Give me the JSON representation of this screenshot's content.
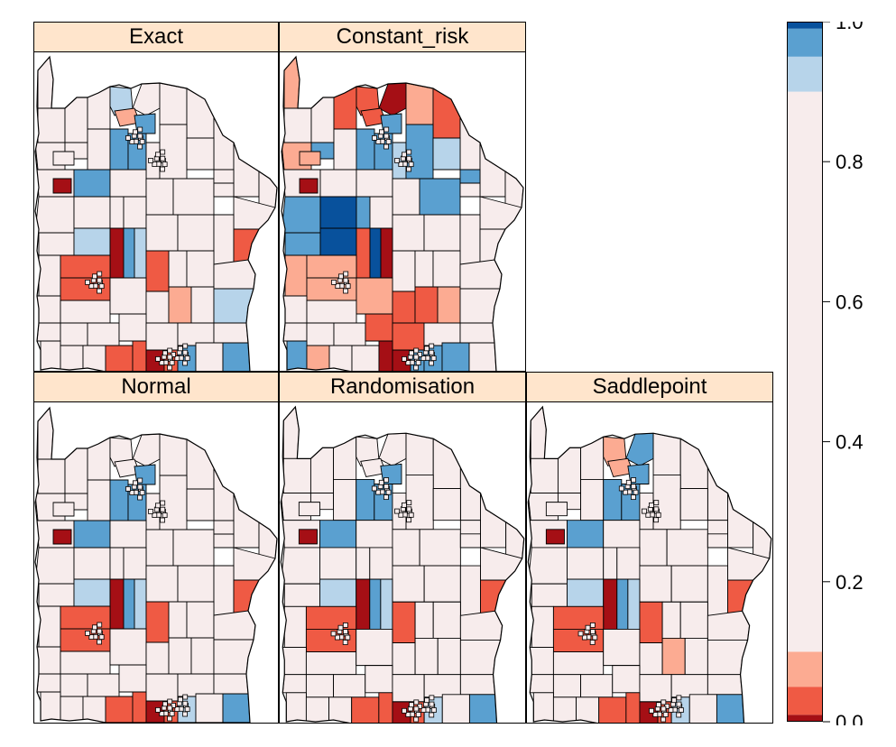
{
  "panels": [
    {
      "title": "Exact"
    },
    {
      "title": "Constant_risk"
    },
    {
      "title": "Normal"
    },
    {
      "title": "Randomisation"
    },
    {
      "title": "Saddlepoint"
    }
  ],
  "colorbar": {
    "ticks": [
      "0.0",
      "0.2",
      "0.4",
      "0.6",
      "0.8",
      "1.0"
    ],
    "bands": [
      {
        "from": 0.0,
        "to": 0.01,
        "color": "#a50f15"
      },
      {
        "from": 0.01,
        "to": 0.05,
        "color": "#ef5a44"
      },
      {
        "from": 0.05,
        "to": 0.1,
        "color": "#fcab92"
      },
      {
        "from": 0.1,
        "to": 0.9,
        "color": "#f7ecec"
      },
      {
        "from": 0.9,
        "to": 0.95,
        "color": "#b7d4ea"
      },
      {
        "from": 0.95,
        "to": 0.99,
        "color": "#5aa0d0"
      },
      {
        "from": 0.99,
        "to": 1.0,
        "color": "#08519c"
      }
    ]
  },
  "colors": {
    "neutral": "#f7ecec",
    "dark_red": "#a50f15",
    "red": "#ef5a44",
    "light_red": "#fcab92",
    "light_blue": "#b7d4ea",
    "blue": "#5aa0d0",
    "dark_blue": "#08519c",
    "strip": "#ffe5cc"
  }
}
